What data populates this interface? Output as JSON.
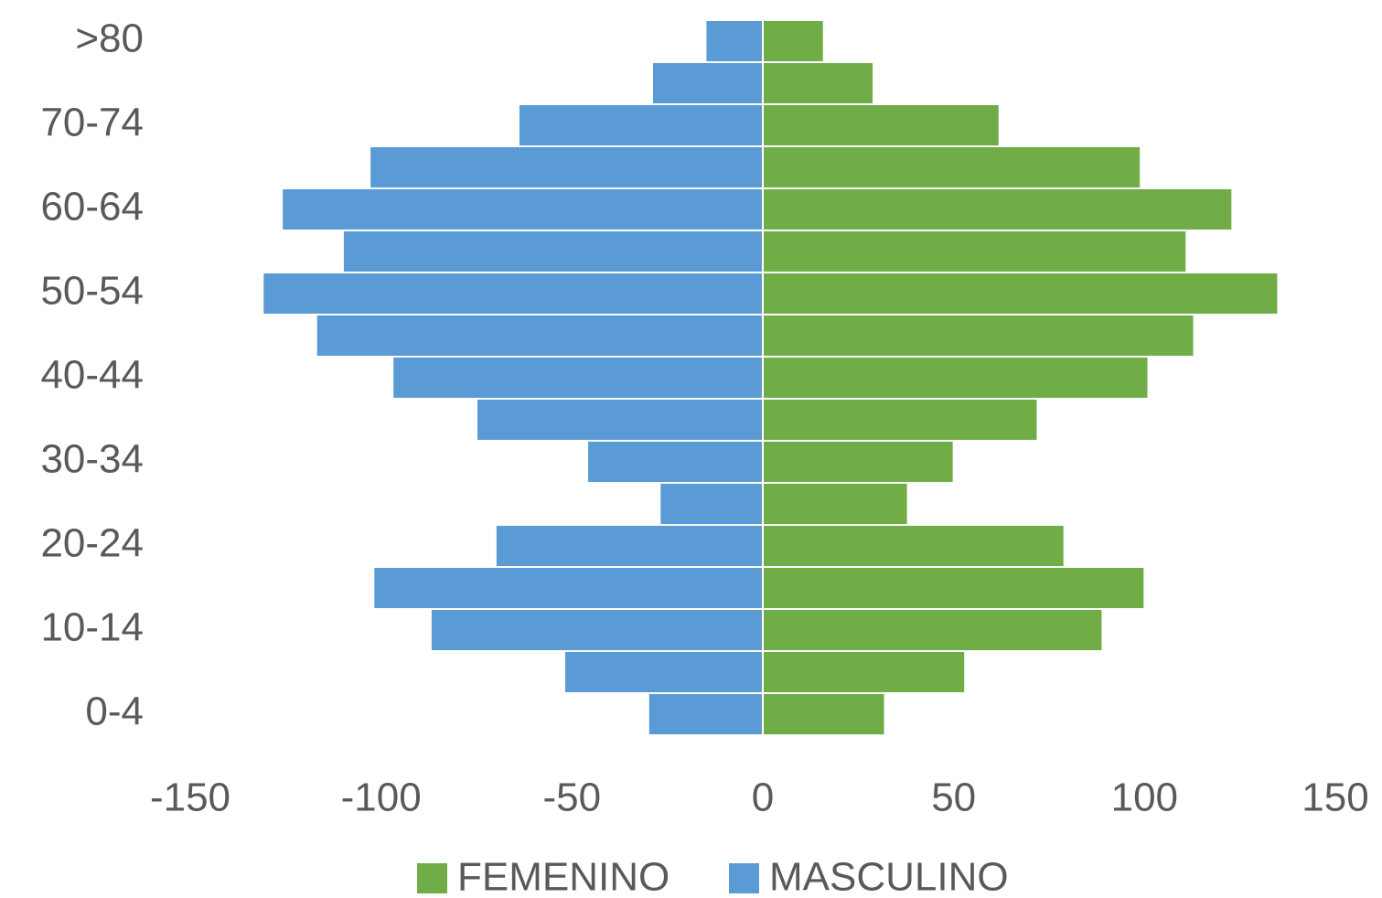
{
  "chart_data": {
    "type": "pyramid",
    "categories": [
      "0-4",
      null,
      "10-14",
      null,
      "20-24",
      null,
      "30-34",
      null,
      "40-44",
      null,
      "50-54",
      null,
      "60-64",
      null,
      "70-74",
      null,
      ">80"
    ],
    "series": [
      {
        "name": "FEMENINO",
        "color": "#70ad47",
        "values": [
          32,
          53,
          89,
          100,
          79,
          38,
          50,
          72,
          101,
          113,
          135,
          111,
          123,
          99,
          62,
          29,
          16
        ]
      },
      {
        "name": "MASCULINO",
        "color": "#5b9bd5",
        "values": [
          -30,
          -52,
          -87,
          -102,
          -70,
          -27,
          -46,
          -75,
          -97,
          -117,
          -131,
          -110,
          -126,
          -103,
          -64,
          -29,
          -15
        ]
      }
    ],
    "xlim": [
      -150,
      150
    ],
    "xticks": [
      -150,
      -100,
      -50,
      0,
      50,
      100,
      150
    ]
  }
}
